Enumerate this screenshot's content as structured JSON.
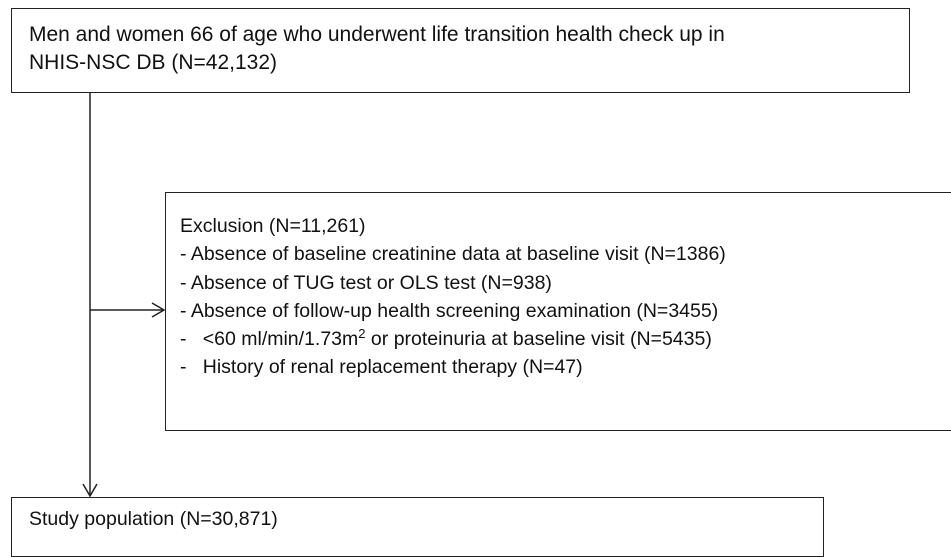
{
  "top_box": {
    "lines": [
      "Men and women 66 of age who underwent life transition health check up in",
      "NHIS-NSC DB (N=42,132)"
    ]
  },
  "exclusion_box": {
    "title": "Exclusion (N=11,261)",
    "items": [
      "- Absence of baseline creatinine data at baseline visit (N=1386)",
      "- Absence of TUG test or OLS test (N=938)",
      "- Absence of follow-up health screening examination (N=3455)",
      {
        "text": "-   <60 ml/min/1.73m",
        "superscript": "2",
        "rest": " or proteinuria at baseline visit (N=5435)"
      },
      "-   History of renal replacement therapy (N=47)"
    ]
  },
  "bottom_box": {
    "title": "Study population (N=30,871)"
  }
}
